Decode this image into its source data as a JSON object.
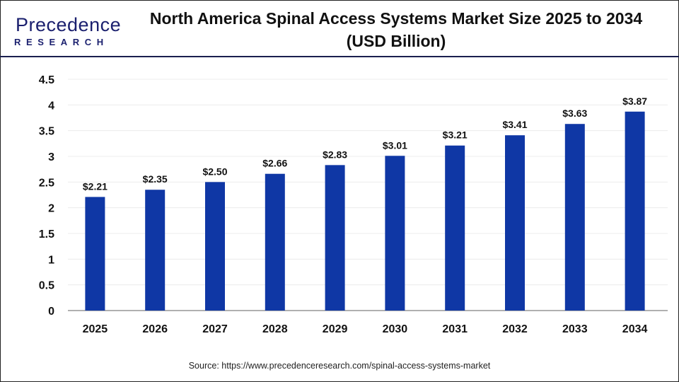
{
  "logo": {
    "main": "Precedence",
    "sub": "RESEARCH"
  },
  "title_line1": "North America Spinal Access Systems Market Size 2025 to 2034",
  "title_line2": "(USD Billion)",
  "source": "Source: https://www.precedenceresearch.com/spinal-access-systems-market",
  "chart_data": {
    "type": "bar",
    "title": "North America Spinal Access Systems Market Size 2025 to 2034 (USD Billion)",
    "categories": [
      "2025",
      "2026",
      "2027",
      "2028",
      "2029",
      "2030",
      "2031",
      "2032",
      "2033",
      "2034"
    ],
    "values": [
      2.21,
      2.35,
      2.5,
      2.66,
      2.83,
      3.01,
      3.21,
      3.41,
      3.63,
      3.87
    ],
    "data_labels": [
      "$2.21",
      "$2.35",
      "$2.50",
      "$2.66",
      "$2.83",
      "$3.01",
      "$3.21",
      "$3.41",
      "$3.63",
      "$3.87"
    ],
    "yticks": [
      "0",
      "0.5",
      "1",
      "1.5",
      "2",
      "2.5",
      "3",
      "3.5",
      "4",
      "4.5"
    ],
    "ylim": [
      0,
      4.5
    ],
    "grid": true,
    "bar_color": "#0f37a5",
    "xlabel": "",
    "ylabel": ""
  }
}
